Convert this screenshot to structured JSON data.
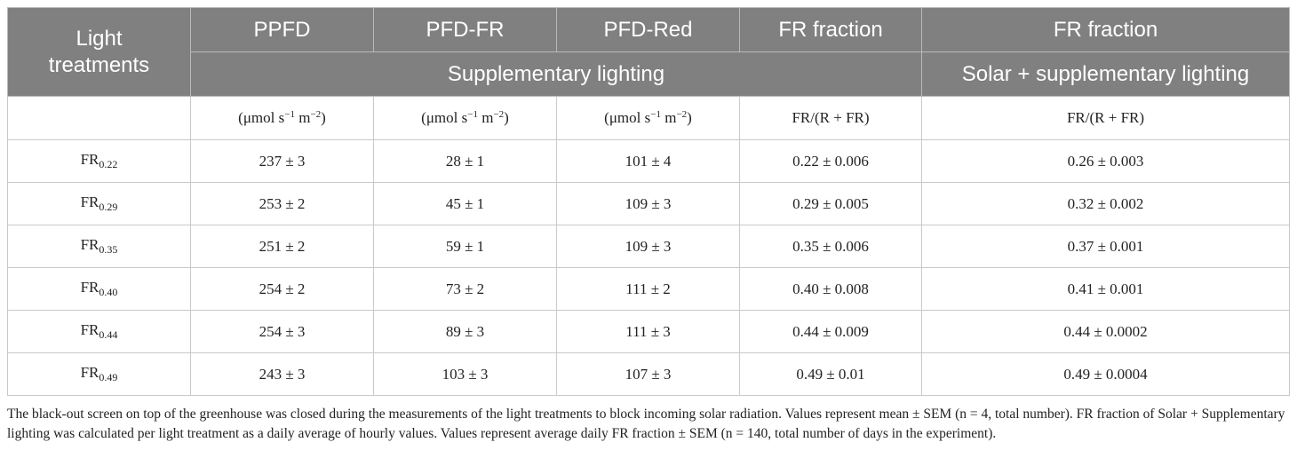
{
  "header": {
    "row_label": [
      "Light",
      "treatments"
    ],
    "columns": [
      "PPFD",
      "PFD-FR",
      "PFD-Red",
      "FR fraction",
      "FR fraction"
    ],
    "group_supplementary": "Supplementary lighting",
    "group_solar": "Solar + supplementary lighting"
  },
  "units": {
    "umol": {
      "base": "(μmol s",
      "exp1": "−1",
      "mid": " m",
      "exp2": "−2",
      "close": ")"
    },
    "ratio": "FR/(R + FR)"
  },
  "rows": [
    {
      "label": "FR",
      "sub": "0.22",
      "ppfd": "237 ± 3",
      "pfd_fr": "28 ± 1",
      "pfd_red": "101 ± 4",
      "fr_supp": "0.22 ± 0.006",
      "fr_solar": "0.26 ± 0.003"
    },
    {
      "label": "FR",
      "sub": "0.29",
      "ppfd": "253 ± 2",
      "pfd_fr": "45 ± 1",
      "pfd_red": "109 ± 3",
      "fr_supp": "0.29 ± 0.005",
      "fr_solar": "0.32 ± 0.002"
    },
    {
      "label": "FR",
      "sub": "0.35",
      "ppfd": "251 ± 2",
      "pfd_fr": "59 ± 1",
      "pfd_red": "109 ± 3",
      "fr_supp": "0.35 ± 0.006",
      "fr_solar": "0.37 ± 0.001"
    },
    {
      "label": "FR",
      "sub": "0.40",
      "ppfd": "254 ± 2",
      "pfd_fr": "73 ± 2",
      "pfd_red": "111 ± 2",
      "fr_supp": "0.40 ± 0.008",
      "fr_solar": "0.41 ± 0.001"
    },
    {
      "label": "FR",
      "sub": "0.44",
      "ppfd": "254 ± 3",
      "pfd_fr": "89 ± 3",
      "pfd_red": "111 ± 3",
      "fr_supp": "0.44 ± 0.009",
      "fr_solar": "0.44 ± 0.0002"
    },
    {
      "label": "FR",
      "sub": "0.49",
      "ppfd": "243 ± 3",
      "pfd_fr": "103 ± 3",
      "pfd_red": "107 ± 3",
      "fr_supp": "0.49 ± 0.01",
      "fr_solar": "0.49 ± 0.0004"
    }
  ],
  "footnote": "The black-out screen on top of the greenhouse was closed during the measurements of the light treatments to block incoming solar radiation. Values represent mean ± SEM (n = 4, total number). FR fraction of Solar + Supplementary lighting was calculated per light treatment as a daily average of hourly values. Values represent average daily FR fraction ± SEM (n = 140, total number of days in the experiment).",
  "colors": {
    "header_bg": "#7f807f",
    "header_text": "#ffffff",
    "grid": "#c9c9c9"
  }
}
